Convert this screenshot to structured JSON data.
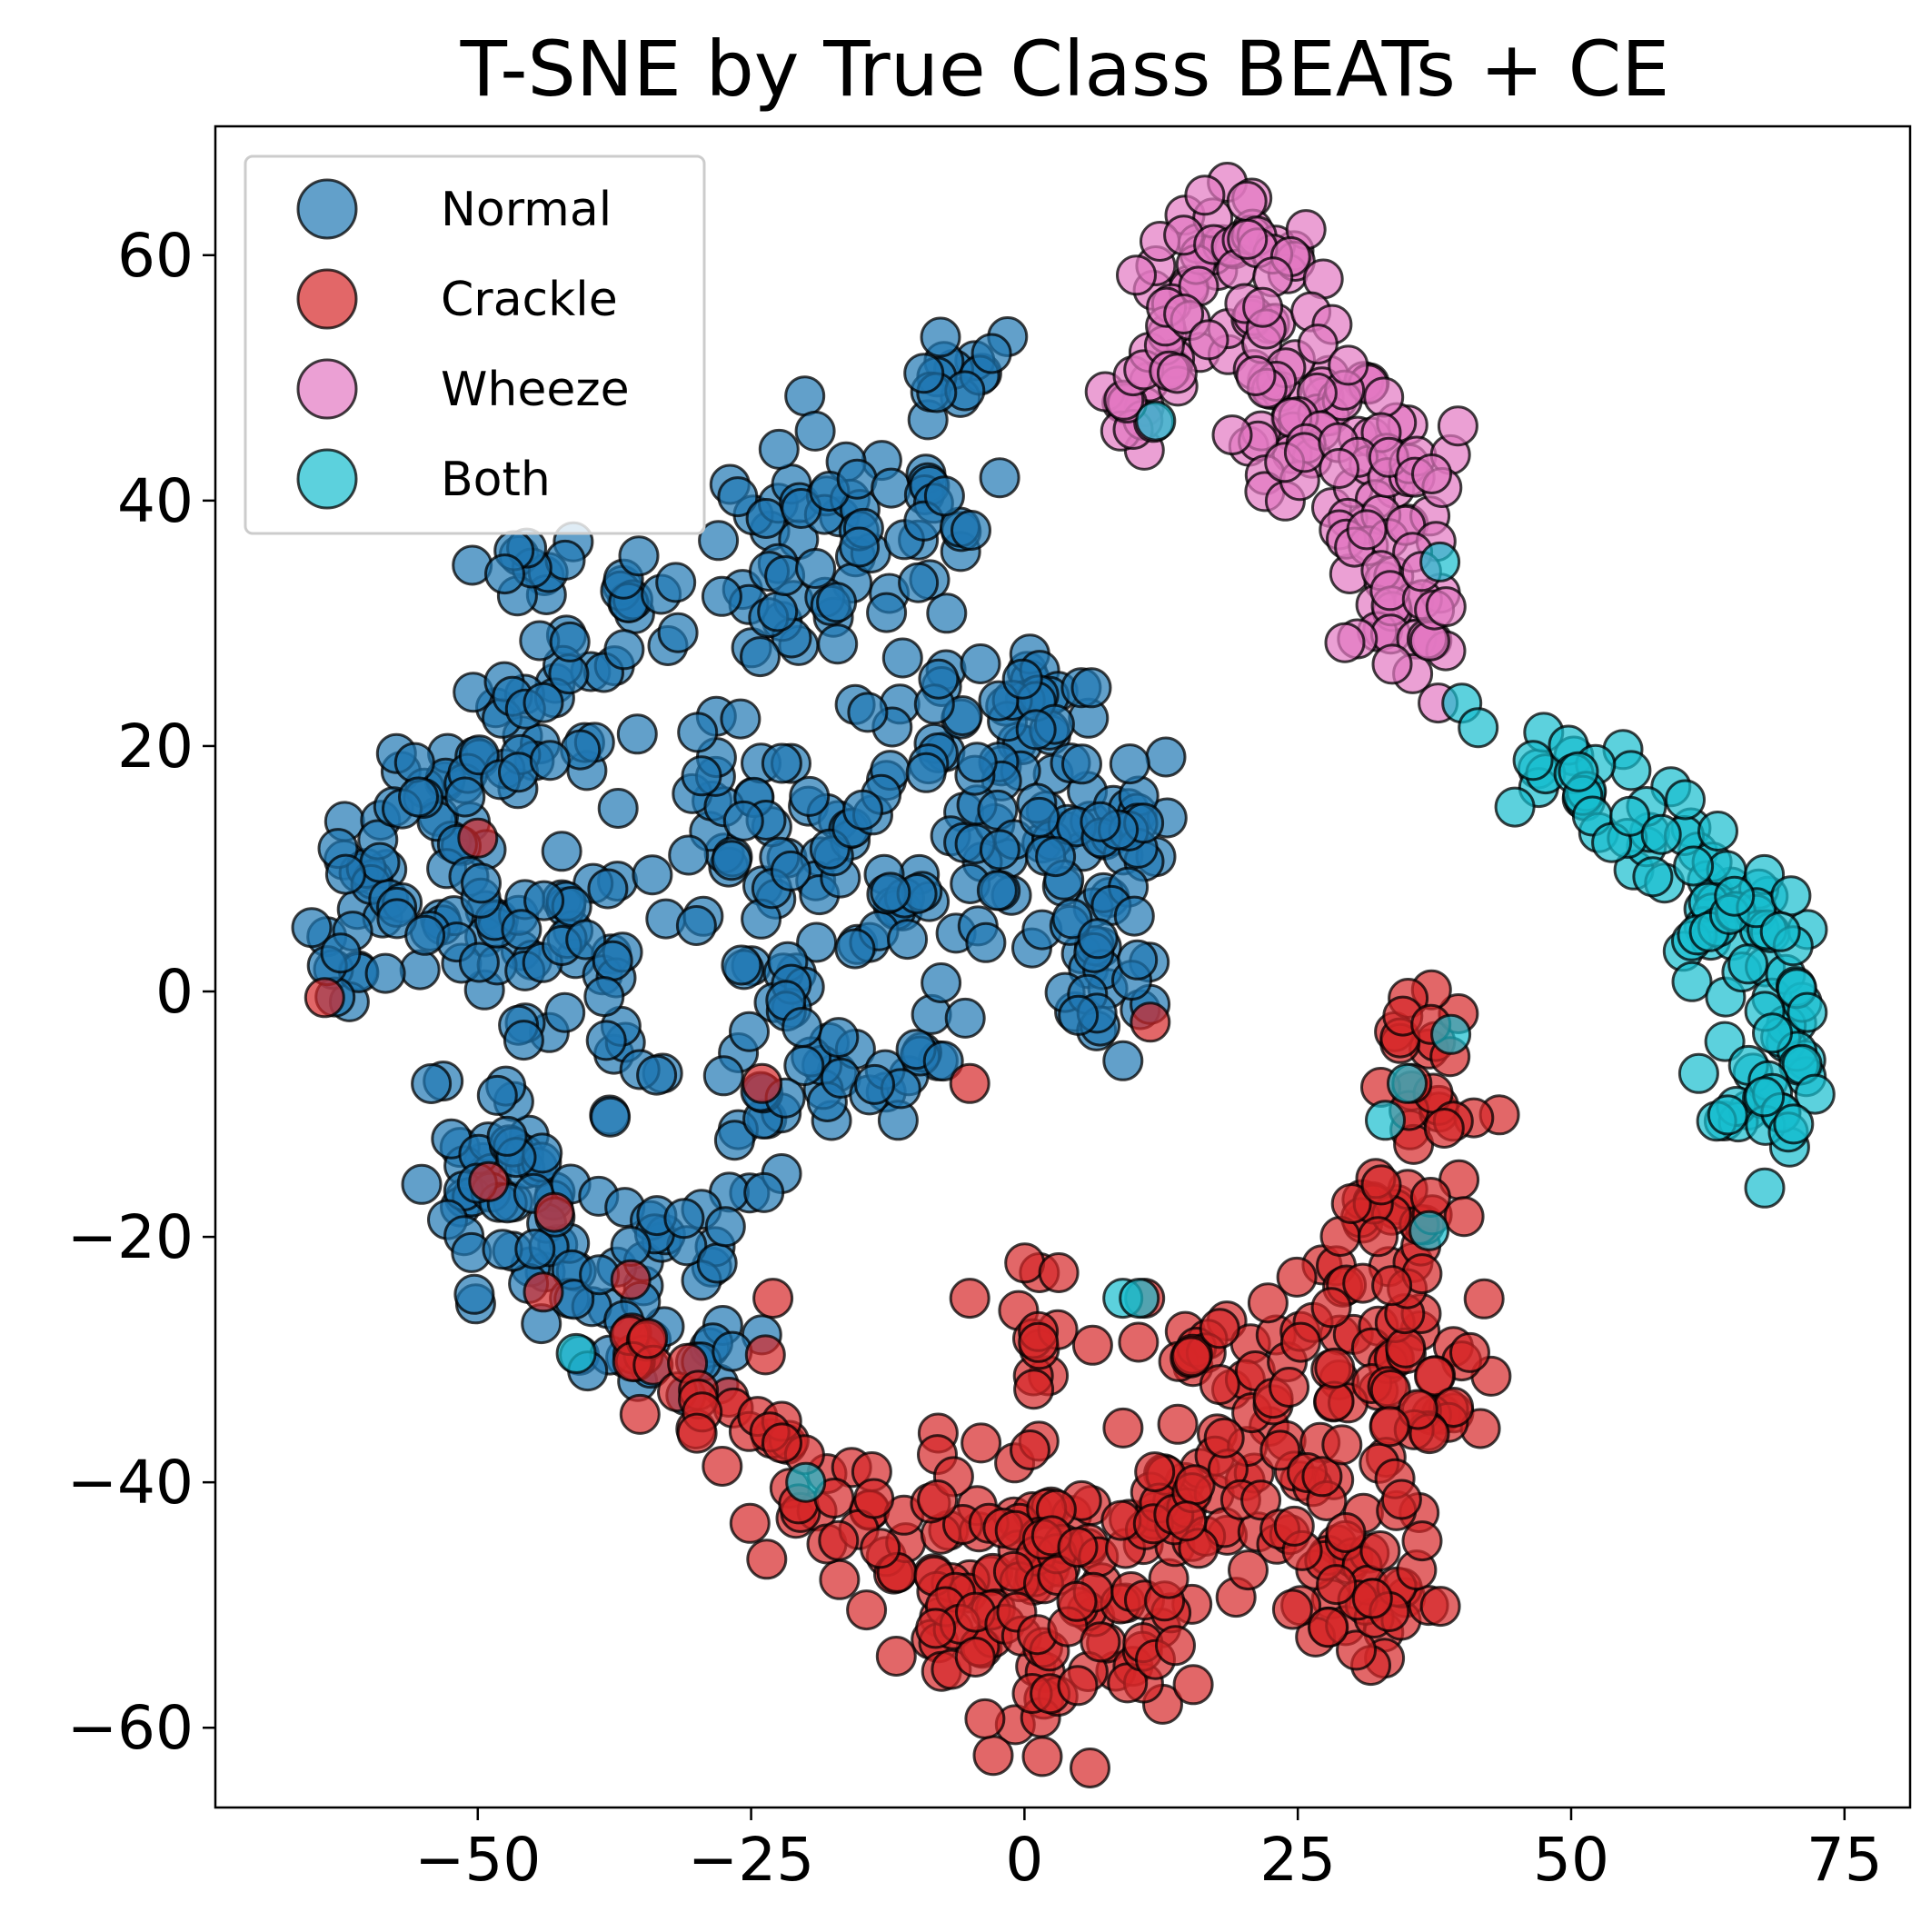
{
  "chart_data": {
    "type": "scatter",
    "title": "T-SNE by True Class BEATs + CE",
    "xlabel": "",
    "ylabel": "",
    "xlim": [
      -74,
      81
    ],
    "ylim": [
      -66.5,
      70.5
    ],
    "xticks": [
      -50,
      -25,
      0,
      25,
      50,
      75
    ],
    "yticks": [
      -60,
      -40,
      -20,
      0,
      20,
      40,
      60
    ],
    "xtick_labels": [
      "−50",
      "−25",
      "0",
      "25",
      "50",
      "75"
    ],
    "ytick_labels": [
      "−60",
      "−40",
      "−20",
      "0",
      "20",
      "40",
      "60"
    ],
    "grid": false,
    "legend_position": "top-left",
    "marker_alpha": 0.7,
    "edge_color": "#000000",
    "series": [
      {
        "name": "Normal",
        "color": "#1f77b4",
        "clusters": [
          {
            "cx": -60,
            "cy": 9,
            "sx": 3,
            "sy": 3,
            "n": 20
          },
          {
            "cx": -63,
            "cy": 2,
            "sx": 2,
            "sy": 2,
            "n": 8
          },
          {
            "cx": -52,
            "cy": 15,
            "sx": 3,
            "sy": 3,
            "n": 22
          },
          {
            "cx": -47,
            "cy": 20,
            "sx": 3,
            "sy": 2.5,
            "n": 15
          },
          {
            "cx": -50,
            "cy": 3,
            "sx": 4,
            "sy": 3,
            "n": 30
          },
          {
            "cx": -42,
            "cy": 6,
            "sx": 3,
            "sy": 3,
            "n": 20
          },
          {
            "cx": -40,
            "cy": 26,
            "sx": 4,
            "sy": 4,
            "n": 22
          },
          {
            "cx": -44,
            "cy": 35,
            "sx": 2,
            "sy": 2,
            "n": 10
          },
          {
            "cx": -36,
            "cy": 32,
            "sx": 3,
            "sy": 2,
            "n": 10
          },
          {
            "cx": -36,
            "cy": -2,
            "sx": 2,
            "sy": 4,
            "n": 12
          },
          {
            "cx": -50,
            "cy": -12,
            "sx": 3,
            "sy": 4,
            "n": 22
          },
          {
            "cx": -44,
            "cy": -15,
            "sx": 3,
            "sy": 4,
            "n": 20
          },
          {
            "cx": -47,
            "cy": -22,
            "sx": 3,
            "sy": 3,
            "n": 15
          },
          {
            "cx": -40,
            "cy": -26,
            "sx": 3,
            "sy": 3,
            "n": 14
          },
          {
            "cx": -33,
            "cy": -22,
            "sx": 3,
            "sy": 3,
            "n": 15
          },
          {
            "cx": -30,
            "cy": -30,
            "sx": 3,
            "sy": 2,
            "n": 10
          },
          {
            "cx": -25,
            "cy": -15,
            "sx": 3,
            "sy": 3,
            "n": 12
          },
          {
            "cx": -29,
            "cy": 10,
            "sx": 3,
            "sy": 3,
            "n": 14
          },
          {
            "cx": -27,
            "cy": 19,
            "sx": 2,
            "sy": 3,
            "n": 10
          },
          {
            "cx": -22,
            "cy": 3,
            "sx": 3,
            "sy": 4,
            "n": 20
          },
          {
            "cx": -21,
            "cy": -6,
            "sx": 4,
            "sy": 3,
            "n": 20
          },
          {
            "cx": -20,
            "cy": 14,
            "sx": 4,
            "sy": 4,
            "n": 18
          },
          {
            "cx": -22,
            "cy": 33,
            "sx": 4,
            "sy": 5,
            "n": 30
          },
          {
            "cx": -18,
            "cy": 42,
            "sx": 4,
            "sy": 4,
            "n": 20
          },
          {
            "cx": -11,
            "cy": 38,
            "sx": 3,
            "sy": 4,
            "n": 14
          },
          {
            "cx": -7,
            "cy": 50,
            "sx": 3,
            "sy": 2,
            "n": 14
          },
          {
            "cx": -6,
            "cy": 38,
            "sx": 1.5,
            "sy": 1.5,
            "n": 6
          },
          {
            "cx": -11,
            "cy": 19,
            "sx": 4,
            "sy": 4,
            "n": 18
          },
          {
            "cx": -12,
            "cy": 8,
            "sx": 3,
            "sy": 3,
            "n": 14
          },
          {
            "cx": -10,
            "cy": -6,
            "sx": 3,
            "sy": 2,
            "n": 14
          },
          {
            "cx": -4,
            "cy": 8,
            "sx": 3,
            "sy": 3,
            "n": 15
          },
          {
            "cx": -2,
            "cy": 22,
            "sx": 3,
            "sy": 4,
            "n": 18
          },
          {
            "cx": 2,
            "cy": 24,
            "sx": 3,
            "sy": 2,
            "n": 15
          },
          {
            "cx": 0,
            "cy": 13,
            "sx": 3,
            "sy": 3,
            "n": 14
          },
          {
            "cx": 5,
            "cy": 13,
            "sx": 2,
            "sy": 3,
            "n": 12
          },
          {
            "cx": 7,
            "cy": 5,
            "sx": 3,
            "sy": 4,
            "n": 16
          },
          {
            "cx": 10,
            "cy": 14,
            "sx": 2,
            "sy": 4,
            "n": 16
          },
          {
            "cx": 11,
            "cy": 2,
            "sx": 2,
            "sy": 3,
            "n": 10
          },
          {
            "cx": 5,
            "cy": -2,
            "sx": 1.5,
            "sy": 2,
            "n": 5
          }
        ]
      },
      {
        "name": "Crackle",
        "color": "#d62728",
        "clusters": [
          {
            "cx": -37,
            "cy": -31,
            "sx": 2,
            "sy": 1.5,
            "n": 8
          },
          {
            "cx": -30,
            "cy": -34,
            "sx": 3,
            "sy": 2,
            "n": 12
          },
          {
            "cx": -22,
            "cy": -38,
            "sx": 3,
            "sy": 3,
            "n": 14
          },
          {
            "cx": -18,
            "cy": -45,
            "sx": 3,
            "sy": 2,
            "n": 14
          },
          {
            "cx": -10,
            "cy": -47,
            "sx": 4,
            "sy": 3,
            "n": 20
          },
          {
            "cx": -7,
            "cy": -42,
            "sx": 3,
            "sy": 3,
            "n": 12
          },
          {
            "cx": -4,
            "cy": -52,
            "sx": 3,
            "sy": 3,
            "n": 18
          },
          {
            "cx": 1,
            "cy": -45,
            "sx": 3,
            "sy": 4,
            "n": 25
          },
          {
            "cx": 2,
            "cy": -55,
            "sx": 3,
            "sy": 3,
            "n": 18
          },
          {
            "cx": 7,
            "cy": -50,
            "sx": 3,
            "sy": 4,
            "n": 22
          },
          {
            "cx": 12,
            "cy": -52,
            "sx": 3,
            "sy": 3,
            "n": 14
          },
          {
            "cx": 2,
            "cy": -30,
            "sx": 2,
            "sy": 4,
            "n": 14
          },
          {
            "cx": 12,
            "cy": -40,
            "sx": 3,
            "sy": 3,
            "n": 18
          },
          {
            "cx": 18,
            "cy": -32,
            "sx": 4,
            "sy": 4,
            "n": 20
          },
          {
            "cx": 17,
            "cy": -42,
            "sx": 3,
            "sy": 3,
            "n": 14
          },
          {
            "cx": 22,
            "cy": -37,
            "sx": 3,
            "sy": 4,
            "n": 18
          },
          {
            "cx": 27,
            "cy": -45,
            "sx": 3,
            "sy": 4,
            "n": 22
          },
          {
            "cx": 31,
            "cy": -50,
            "sx": 3,
            "sy": 3,
            "n": 16
          },
          {
            "cx": 27,
            "cy": -26,
            "sx": 3,
            "sy": 4,
            "n": 18
          },
          {
            "cx": 33,
            "cy": -30,
            "sx": 3,
            "sy": 4,
            "n": 20
          },
          {
            "cx": 38,
            "cy": -32,
            "sx": 3,
            "sy": 4,
            "n": 20
          },
          {
            "cx": 35,
            "cy": -45,
            "sx": 3,
            "sy": 4,
            "n": 18
          },
          {
            "cx": 36,
            "cy": -17,
            "sx": 3,
            "sy": 4,
            "n": 20
          },
          {
            "cx": 38,
            "cy": -8,
            "sx": 2,
            "sy": 3,
            "n": 12
          },
          {
            "cx": 36,
            "cy": -3,
            "sx": 2,
            "sy": 2,
            "n": 8
          },
          {
            "cx": 32,
            "cy": -20,
            "sx": 2,
            "sy": 3,
            "n": 10
          }
        ],
        "points": [
          [
            -50,
            12.5
          ],
          [
            -64,
            -0.5
          ],
          [
            -24,
            -7.5
          ],
          [
            -5,
            -7.5
          ],
          [
            -49,
            -15.5
          ],
          [
            -43,
            -18
          ],
          [
            -44,
            -24.5
          ],
          [
            -36,
            -23.5
          ],
          [
            -23,
            -25
          ],
          [
            11.5,
            -2.5
          ],
          [
            -5,
            -25
          ],
          [
            11,
            -25
          ]
        ]
      },
      {
        "name": "Wheeze",
        "color": "#e377c2",
        "clusters": [
          {
            "cx": 10,
            "cy": 47,
            "sx": 2,
            "sy": 2,
            "n": 12
          },
          {
            "cx": 13,
            "cy": 51,
            "sx": 2,
            "sy": 2,
            "n": 12
          },
          {
            "cx": 15,
            "cy": 58,
            "sx": 2,
            "sy": 2.5,
            "n": 14
          },
          {
            "cx": 19,
            "cy": 62,
            "sx": 2.5,
            "sy": 1.5,
            "n": 14
          },
          {
            "cx": 24,
            "cy": 60,
            "sx": 2,
            "sy": 2,
            "n": 12
          },
          {
            "cx": 19,
            "cy": 54,
            "sx": 2,
            "sy": 2,
            "n": 12
          },
          {
            "cx": 24,
            "cy": 52,
            "sx": 2.5,
            "sy": 3,
            "n": 16
          },
          {
            "cx": 22,
            "cy": 47,
            "sx": 2,
            "sy": 2,
            "n": 10
          },
          {
            "cx": 29,
            "cy": 49,
            "sx": 2,
            "sy": 2,
            "n": 12
          },
          {
            "cx": 25,
            "cy": 43,
            "sx": 2,
            "sy": 3,
            "n": 12
          },
          {
            "cx": 32,
            "cy": 45,
            "sx": 2,
            "sy": 2,
            "n": 12
          },
          {
            "cx": 31,
            "cy": 37,
            "sx": 2,
            "sy": 3,
            "n": 14
          },
          {
            "cx": 37,
            "cy": 42,
            "sx": 2,
            "sy": 2,
            "n": 10
          },
          {
            "cx": 35,
            "cy": 33,
            "sx": 2,
            "sy": 2,
            "n": 10
          },
          {
            "cx": 31,
            "cy": 30,
            "sx": 1.5,
            "sy": 1.5,
            "n": 6
          },
          {
            "cx": 37,
            "cy": 28,
            "sx": 1.5,
            "sy": 3,
            "n": 12
          }
        ]
      },
      {
        "name": "Both",
        "color": "#17becf",
        "clusters": [
          {
            "cx": 48,
            "cy": 18,
            "sx": 1.5,
            "sy": 1.5,
            "n": 8
          },
          {
            "cx": 52,
            "cy": 16,
            "sx": 2,
            "sy": 2,
            "n": 12
          },
          {
            "cx": 57,
            "cy": 13,
            "sx": 2,
            "sy": 2,
            "n": 12
          },
          {
            "cx": 61,
            "cy": 10,
            "sx": 2,
            "sy": 2,
            "n": 12
          },
          {
            "cx": 63,
            "cy": 4,
            "sx": 2,
            "sy": 3,
            "n": 14
          },
          {
            "cx": 67,
            "cy": 6,
            "sx": 2,
            "sy": 2,
            "n": 12
          },
          {
            "cx": 70,
            "cy": 1,
            "sx": 1.5,
            "sy": 3,
            "n": 12
          },
          {
            "cx": 70,
            "cy": -6,
            "sx": 2,
            "sy": 2.5,
            "n": 12
          },
          {
            "cx": 66,
            "cy": -10,
            "sx": 2,
            "sy": 2,
            "n": 12
          },
          {
            "cx": 69,
            "cy": -12,
            "sx": 1.5,
            "sy": 2,
            "n": 8
          }
        ],
        "points": [
          [
            12,
            46.5
          ],
          [
            38,
            35
          ],
          [
            40,
            23.5
          ],
          [
            41.5,
            21.5
          ],
          [
            -41,
            -29.5
          ],
          [
            -20,
            -40
          ],
          [
            9,
            -25
          ],
          [
            37,
            -19.5
          ],
          [
            35,
            -7.5
          ],
          [
            39,
            -3.5
          ],
          [
            33,
            -10.5
          ],
          [
            10.5,
            -25
          ]
        ]
      }
    ]
  }
}
